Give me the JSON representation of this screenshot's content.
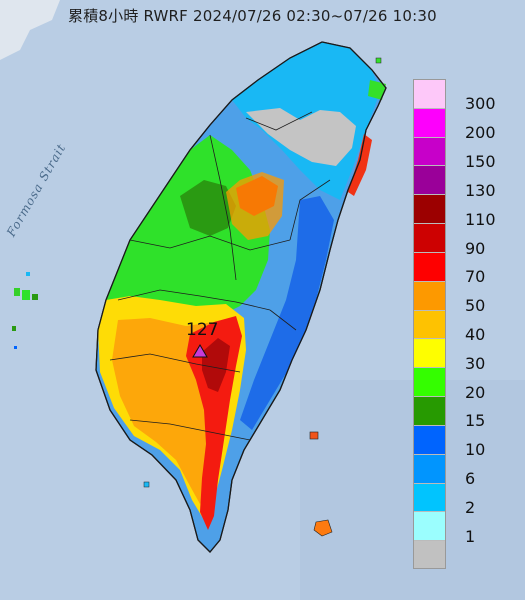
{
  "title": "累積8小時 RWRF 2024/07/26 02:30~07/26 10:30",
  "sea_label": "Formosa Strait",
  "max": {
    "label": "127",
    "marker_color": "#c63bd9"
  },
  "legend": [
    {
      "label": "300",
      "color": "#fdc8f9"
    },
    {
      "label": "200",
      "color": "#fd00fc"
    },
    {
      "label": "150",
      "color": "#c700c9"
    },
    {
      "label": "130",
      "color": "#9a0099"
    },
    {
      "label": "110",
      "color": "#9c0000"
    },
    {
      "label": "90",
      "color": "#cd0101"
    },
    {
      "label": "70",
      "color": "#fe0000"
    },
    {
      "label": "50",
      "color": "#fd9900"
    },
    {
      "label": "40",
      "color": "#fec201"
    },
    {
      "label": "30",
      "color": "#fefe00"
    },
    {
      "label": "20",
      "color": "#34fe00"
    },
    {
      "label": "15",
      "color": "#279a01"
    },
    {
      "label": "10",
      "color": "#0064fe"
    },
    {
      "label": "6",
      "color": "#0195fe"
    },
    {
      "label": "2",
      "color": "#01c4fe"
    },
    {
      "label": "1",
      "color": "#9bfefe"
    },
    {
      "label": "",
      "color": "#c1c1c1"
    }
  ]
}
